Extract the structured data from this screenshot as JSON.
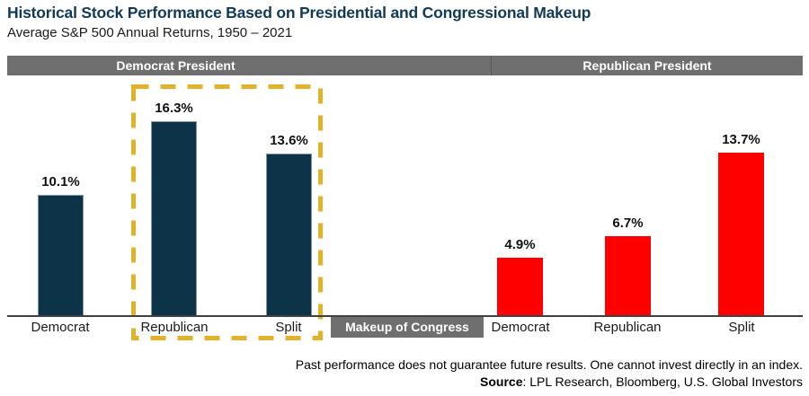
{
  "header": {
    "title": "Historical Stock Performance Based on Presidential and Congressional Makeup",
    "subtitle": "Average S&P 500 Annual Returns, 1950 – 2021"
  },
  "colors": {
    "title_navy": "#123A56",
    "bar_navy": "#0D3349",
    "bar_red": "#FF0000",
    "band_gray": "#6F6F6F",
    "gold_dash": "#E3B22B",
    "axis": "#404040"
  },
  "chart_data": {
    "type": "bar",
    "title": "Historical Stock Performance Based on Presidential and Congressional Makeup",
    "subtitle": "Average S&P 500 Annual Returns, 1950 – 2021",
    "group_headers": [
      {
        "label": "Democrat President"
      },
      {
        "label": "Republican President"
      }
    ],
    "xlabel": "Makeup of Congress",
    "categories": [
      "Democrat",
      "Republican",
      "Split"
    ],
    "series": [
      {
        "name": "Democrat President",
        "color": "#0D3349",
        "values": [
          10.1,
          16.3,
          13.6
        ]
      },
      {
        "name": "Republican President",
        "color": "#FF0000",
        "values": [
          4.9,
          6.7,
          13.7
        ]
      }
    ],
    "bars": [
      {
        "group": "Democrat President",
        "category": "Democrat",
        "value": 10.1,
        "label": "10.1%"
      },
      {
        "group": "Democrat President",
        "category": "Republican",
        "value": 16.3,
        "label": "16.3%"
      },
      {
        "group": "Democrat President",
        "category": "Split",
        "value": 13.6,
        "label": "13.6%"
      },
      {
        "group": "Republican President",
        "category": "Democrat",
        "value": 4.9,
        "label": "4.9%"
      },
      {
        "group": "Republican President",
        "category": "Republican",
        "value": 6.7,
        "label": "6.7%"
      },
      {
        "group": "Republican President",
        "category": "Split",
        "value": 13.7,
        "label": "13.7%"
      }
    ],
    "ylim": [
      0,
      18
    ],
    "grid": false,
    "legend": "none",
    "annotations": [
      {
        "type": "dashed-box",
        "color": "#E3B22B",
        "around": [
          "Democrat President / Republican",
          "Democrat President / Split"
        ]
      }
    ]
  },
  "footer": {
    "disclaimer": "Past performance does not guarantee future results. One cannot invest directly in an index.",
    "source_label": "Source",
    "source_rest": ": LPL Research, Bloomberg, U.S. Global Investors"
  }
}
